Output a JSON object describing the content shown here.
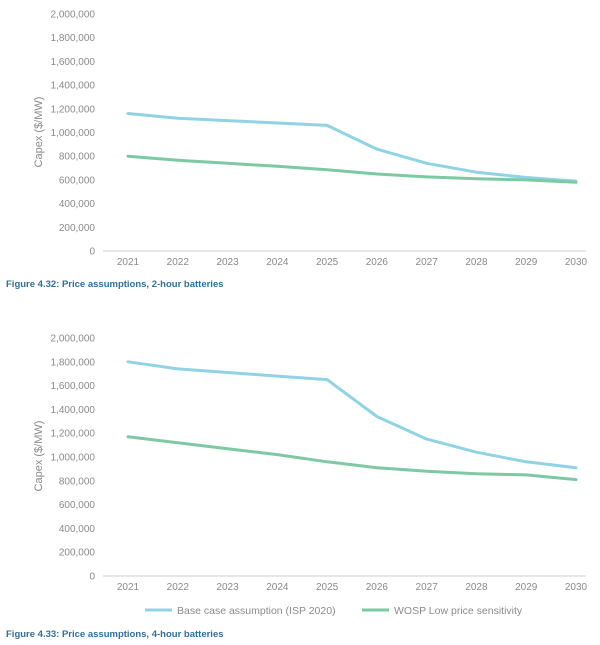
{
  "chart_data": [
    {
      "type": "line",
      "caption": "Figure 4.32: Price assumptions, 2-hour batteries",
      "ylabel": "Capex ($/MW)",
      "xlabel": "",
      "ylim": [
        0,
        2000000
      ],
      "y_ticks": [
        "0",
        "200,000",
        "400,000",
        "600,000",
        "800,000",
        "1,000,000",
        "1,200,000",
        "1,400,000",
        "1,600,000",
        "1,800,000",
        "2,000,000"
      ],
      "categories": [
        "2021",
        "2022",
        "2023",
        "2024",
        "2025",
        "2026",
        "2027",
        "2028",
        "2029",
        "2030"
      ],
      "grid": false,
      "series": [
        {
          "name": "Base case assumption (ISP 2020)",
          "color": "#8fd3e5",
          "values": [
            1160000,
            1120000,
            1100000,
            1080000,
            1060000,
            860000,
            740000,
            665000,
            620000,
            590000
          ]
        },
        {
          "name": "WOSP Low price sensitivity",
          "color": "#7cc9a4",
          "values": [
            800000,
            765000,
            740000,
            715000,
            685000,
            650000,
            625000,
            610000,
            600000,
            580000
          ]
        }
      ]
    },
    {
      "type": "line",
      "caption": "Figure 4.33: Price assumptions, 4-hour batteries",
      "ylabel": "Capex ($/MW)",
      "xlabel": "",
      "ylim": [
        0,
        2000000
      ],
      "y_ticks": [
        "0",
        "200,000",
        "400,000",
        "600,000",
        "800,000",
        "1,000,000",
        "1,200,000",
        "1,400,000",
        "1,600,000",
        "1,800,000",
        "2,000,000"
      ],
      "categories": [
        "2021",
        "2022",
        "2023",
        "2024",
        "2025",
        "2026",
        "2027",
        "2028",
        "2029",
        "2030"
      ],
      "grid": false,
      "legend": "bottom",
      "series": [
        {
          "name": "Base case assumption (ISP 2020)",
          "color": "#8fd3e5",
          "values": [
            1800000,
            1740000,
            1710000,
            1680000,
            1650000,
            1340000,
            1150000,
            1040000,
            960000,
            910000
          ]
        },
        {
          "name": "WOSP Low price sensitivity",
          "color": "#7cc9a4",
          "values": [
            1170000,
            1120000,
            1070000,
            1020000,
            960000,
            910000,
            880000,
            860000,
            850000,
            810000
          ]
        }
      ]
    }
  ]
}
